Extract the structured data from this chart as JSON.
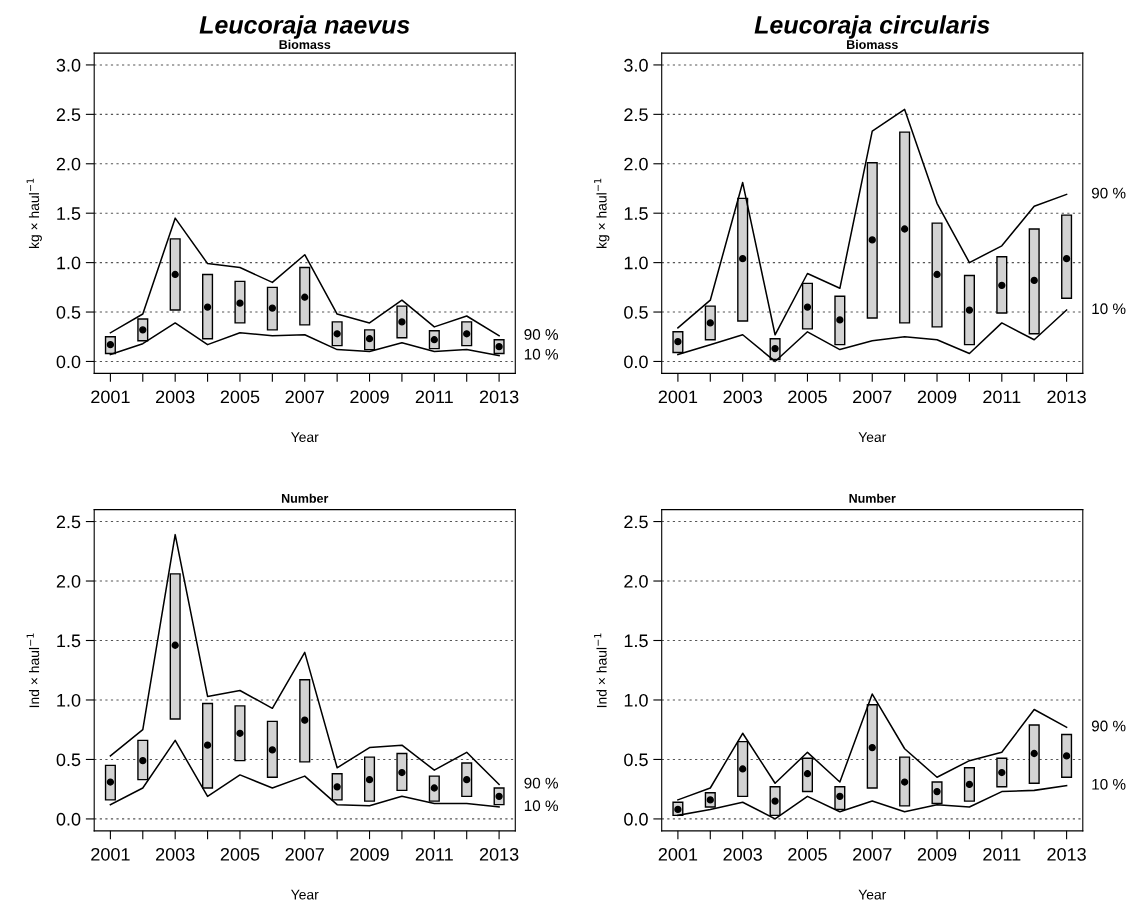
{
  "chart_data": [
    {
      "type": "bar",
      "title": "Leucoraja naevus",
      "subtitle": "Biomass",
      "xlabel": "Year",
      "ylabel": "kg × haul$^{−1}$",
      "grid": "y",
      "legend": false,
      "x": [
        2001,
        2002,
        2003,
        2004,
        2005,
        2006,
        2007,
        2008,
        2009,
        2010,
        2011,
        2012,
        2013
      ],
      "xlim": [
        2000.5,
        2013.5
      ],
      "xticks": [
        2001,
        {
          "value": 2002,
          "label": null
        },
        2003,
        {
          "value": 2004,
          "label": null
        },
        2005,
        {
          "value": 2006,
          "label": null
        },
        2007,
        {
          "value": 2008,
          "label": null
        },
        2009,
        {
          "value": 2010,
          "label": null
        },
        2011,
        {
          "value": 2012,
          "label": null
        },
        2013
      ],
      "ylim": [
        -0.12,
        3.12
      ],
      "yticks": [
        {
          "value": 0,
          "label": "0.0"
        },
        {
          "value": 0.5,
          "label": "0.5"
        },
        {
          "value": 1,
          "label": "1.0"
        },
        {
          "value": 1.5,
          "label": "1.5"
        },
        {
          "value": 2,
          "label": "2.0"
        },
        {
          "value": 2.5,
          "label": "2.5"
        },
        {
          "value": 3,
          "label": "3.0"
        }
      ],
      "series": [
        {
          "color": "#d3d3d3",
          "values": [
            0.17,
            0.22,
            0.72,
            0.65,
            0.42,
            0.43,
            0.58,
            0.24,
            0.2,
            0.32,
            0.18,
            0.24,
            0.14
          ],
          "base": [
            0.08,
            0.21,
            0.52,
            0.23,
            0.39,
            0.32,
            0.37,
            0.16,
            0.12,
            0.24,
            0.13,
            0.16,
            0.08
          ]
        },
        {
          "type": "scatter",
          "color": "#000000",
          "marker": "circle",
          "values": [
            0.17,
            0.32,
            0.88,
            0.55,
            0.59,
            0.54,
            0.65,
            0.28,
            0.23,
            0.4,
            0.22,
            0.28,
            0.15
          ]
        },
        {
          "type": "line",
          "name": "90 %",
          "color": "#000000",
          "values": [
            0.29,
            0.48,
            1.45,
            0.99,
            0.95,
            0.8,
            1.08,
            0.48,
            0.39,
            0.62,
            0.35,
            0.46,
            0.26
          ]
        },
        {
          "type": "line",
          "name": "10 %",
          "color": "#000000",
          "values": [
            0.07,
            0.18,
            0.39,
            0.17,
            0.29,
            0.26,
            0.27,
            0.12,
            0.1,
            0.19,
            0.1,
            0.12,
            0.06
          ]
        }
      ]
    },
    {
      "type": "bar",
      "title": "Leucoraja circularis",
      "subtitle": "Biomass",
      "xlabel": "Year",
      "ylabel": "kg × haul$^{−1}$",
      "grid": "y",
      "legend": false,
      "x": [
        2001,
        2002,
        2003,
        2004,
        2005,
        2006,
        2007,
        2008,
        2009,
        2010,
        2011,
        2012,
        2013
      ],
      "xlim": [
        2000.5,
        2013.5
      ],
      "xticks": [
        2001,
        {
          "value": 2002,
          "label": null
        },
        2003,
        {
          "value": 2004,
          "label": null
        },
        2005,
        {
          "value": 2006,
          "label": null
        },
        2007,
        {
          "value": 2008,
          "label": null
        },
        2009,
        {
          "value": 2010,
          "label": null
        },
        2011,
        {
          "value": 2012,
          "label": null
        },
        2013
      ],
      "ylim": [
        -0.12,
        3.12
      ],
      "yticks": [
        {
          "value": 0,
          "label": "0.0"
        },
        {
          "value": 0.5,
          "label": "0.5"
        },
        {
          "value": 1,
          "label": "1.0"
        },
        {
          "value": 1.5,
          "label": "1.5"
        },
        {
          "value": 2,
          "label": "2.0"
        },
        {
          "value": 2.5,
          "label": "2.5"
        },
        {
          "value": 3,
          "label": "3.0"
        }
      ],
      "series": [
        {
          "color": "#d3d3d3",
          "values": [
            0.21,
            0.34,
            1.24,
            0.21,
            0.46,
            0.49,
            1.57,
            1.93,
            1.05,
            0.7,
            0.57,
            1.06,
            0.84
          ],
          "base": [
            0.09,
            0.22,
            0.41,
            0.02,
            0.33,
            0.17,
            0.44,
            0.39,
            0.35,
            0.17,
            0.49,
            0.28,
            0.64
          ]
        },
        {
          "type": "scatter",
          "color": "#000000",
          "marker": "circle",
          "values": [
            0.2,
            0.39,
            1.04,
            0.13,
            0.55,
            0.42,
            1.23,
            1.34,
            0.88,
            0.52,
            0.77,
            0.82,
            1.04
          ]
        },
        {
          "type": "line",
          "name": "90 %",
          "color": "#000000",
          "values": [
            0.34,
            0.62,
            1.81,
            0.27,
            0.89,
            0.74,
            2.33,
            2.55,
            1.6,
            1.0,
            1.17,
            1.57,
            1.69
          ]
        },
        {
          "type": "line",
          "name": "10 %",
          "color": "#000000",
          "values": [
            0.07,
            0.17,
            0.27,
            0.0,
            0.3,
            0.12,
            0.21,
            0.25,
            0.22,
            0.08,
            0.39,
            0.22,
            0.52
          ]
        }
      ]
    },
    {
      "type": "bar",
      "title": "Number",
      "xlabel": "Year",
      "ylabel": "Ind × haul$^{−1}$",
      "grid": "y",
      "legend": false,
      "x": [
        2001,
        2002,
        2003,
        2004,
        2005,
        2006,
        2007,
        2008,
        2009,
        2010,
        2011,
        2012,
        2013
      ],
      "xlim": [
        2000.5,
        2013.5
      ],
      "xticks": [
        2001,
        {
          "value": 2002,
          "label": null
        },
        2003,
        {
          "value": 2004,
          "label": null
        },
        2005,
        {
          "value": 2006,
          "label": null
        },
        2007,
        {
          "value": 2008,
          "label": null
        },
        2009,
        {
          "value": 2010,
          "label": null
        },
        2011,
        {
          "value": 2012,
          "label": null
        },
        2013
      ],
      "ylim": [
        -0.1,
        2.6
      ],
      "yticks": [
        {
          "value": 0,
          "label": "0.0"
        },
        {
          "value": 0.5,
          "label": "0.5"
        },
        {
          "value": 1,
          "label": "1.0"
        },
        {
          "value": 1.5,
          "label": "1.5"
        },
        {
          "value": 2,
          "label": "2.0"
        },
        {
          "value": 2.5,
          "label": "2.5"
        }
      ],
      "series": [
        {
          "color": "#d3d3d3",
          "values": [
            0.29,
            0.33,
            1.22,
            0.71,
            0.46,
            0.47,
            0.69,
            0.22,
            0.37,
            0.31,
            0.21,
            0.28,
            0.14
          ],
          "base": [
            0.16,
            0.33,
            0.84,
            0.26,
            0.49,
            0.35,
            0.48,
            0.16,
            0.15,
            0.24,
            0.15,
            0.19,
            0.12
          ]
        },
        {
          "type": "scatter",
          "color": "#000000",
          "marker": "circle",
          "values": [
            0.31,
            0.49,
            1.46,
            0.62,
            0.72,
            0.58,
            0.83,
            0.27,
            0.33,
            0.39,
            0.26,
            0.33,
            0.19
          ]
        },
        {
          "type": "line",
          "name": "90 %",
          "color": "#000000",
          "values": [
            0.53,
            0.75,
            2.39,
            1.03,
            1.08,
            0.93,
            1.4,
            0.43,
            0.6,
            0.62,
            0.41,
            0.56,
            0.29
          ]
        },
        {
          "type": "line",
          "name": "10 %",
          "color": "#000000",
          "values": [
            0.12,
            0.26,
            0.66,
            0.19,
            0.37,
            0.26,
            0.36,
            0.12,
            0.11,
            0.19,
            0.13,
            0.13,
            0.1
          ]
        }
      ]
    },
    {
      "type": "bar",
      "title": "Number",
      "xlabel": "Year",
      "ylabel": "Ind × haul$^{−1}$",
      "grid": "y",
      "legend": false,
      "x": [
        2001,
        2002,
        2003,
        2004,
        2005,
        2006,
        2007,
        2008,
        2009,
        2010,
        2011,
        2012,
        2013
      ],
      "xlim": [
        2000.5,
        2013.5
      ],
      "xticks": [
        2001,
        {
          "value": 2002,
          "label": null
        },
        2003,
        {
          "value": 2004,
          "label": null
        },
        2005,
        {
          "value": 2006,
          "label": null
        },
        2007,
        {
          "value": 2008,
          "label": null
        },
        2009,
        {
          "value": 2010,
          "label": null
        },
        2011,
        {
          "value": 2012,
          "label": null
        },
        2013
      ],
      "ylim": [
        -0.1,
        2.6
      ],
      "yticks": [
        {
          "value": 0,
          "label": "0.0"
        },
        {
          "value": 0.5,
          "label": "0.5"
        },
        {
          "value": 1,
          "label": "1.0"
        },
        {
          "value": 1.5,
          "label": "1.5"
        },
        {
          "value": 2,
          "label": "2.0"
        },
        {
          "value": 2.5,
          "label": "2.5"
        }
      ],
      "series": [
        {
          "color": "#d3d3d3",
          "values": [
            0.11,
            0.12,
            0.46,
            0.24,
            0.28,
            0.19,
            0.7,
            0.41,
            0.18,
            0.28,
            0.24,
            0.49,
            0.36
          ],
          "base": [
            0.03,
            0.1,
            0.19,
            0.03,
            0.23,
            0.08,
            0.26,
            0.11,
            0.13,
            0.15,
            0.27,
            0.3,
            0.35
          ]
        },
        {
          "type": "scatter",
          "color": "#000000",
          "marker": "circle",
          "values": [
            0.08,
            0.16,
            0.42,
            0.15,
            0.38,
            0.19,
            0.6,
            0.31,
            0.23,
            0.29,
            0.39,
            0.55,
            0.53
          ]
        },
        {
          "type": "line",
          "name": "90 %",
          "color": "#000000",
          "values": [
            0.16,
            0.26,
            0.72,
            0.3,
            0.56,
            0.31,
            1.05,
            0.59,
            0.35,
            0.49,
            0.56,
            0.92,
            0.77
          ]
        },
        {
          "type": "line",
          "name": "10 %",
          "color": "#000000",
          "values": [
            0.03,
            0.08,
            0.14,
            0.0,
            0.19,
            0.06,
            0.15,
            0.06,
            0.12,
            0.1,
            0.23,
            0.24,
            0.28
          ]
        }
      ]
    }
  ]
}
